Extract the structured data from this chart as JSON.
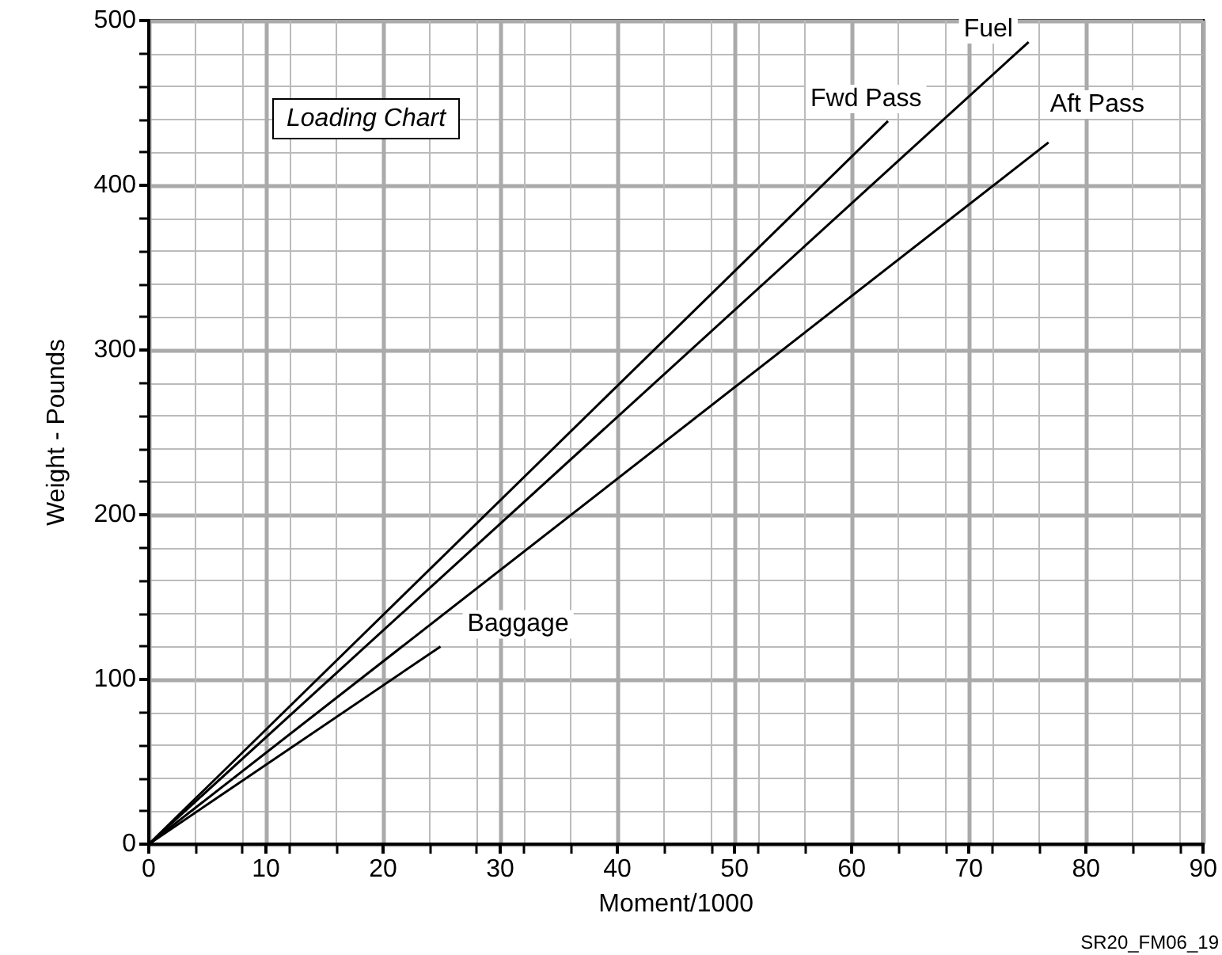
{
  "chart_data": {
    "type": "line",
    "xlabel": "Moment/1000",
    "ylabel": "Weight - Pounds",
    "xlim": [
      0,
      90
    ],
    "xticks": [
      0,
      10,
      20,
      30,
      40,
      50,
      60,
      70,
      80,
      90
    ],
    "ylim": [
      0,
      500
    ],
    "yticks": [
      0,
      100,
      200,
      300,
      400,
      500
    ],
    "grid": true,
    "legend": false,
    "marker": "none",
    "line_style": "solid",
    "series": [
      {
        "name": "Fwd Pass",
        "color": "#000000",
        "x": [
          0,
          63.1
        ],
        "values": [
          0,
          439
        ]
      },
      {
        "name": "Fuel",
        "color": "#000000",
        "x": [
          0,
          75.1
        ],
        "values": [
          0,
          487
        ]
      },
      {
        "name": "Aft Pass",
        "color": "#000000",
        "x": [
          0,
          76.8
        ],
        "values": [
          0,
          426
        ]
      },
      {
        "name": "Baggage",
        "color": "#000000",
        "x": [
          0,
          24.9
        ],
        "values": [
          0,
          120
        ]
      }
    ],
    "annotations": [
      "Loading Chart",
      "SR20_FM06_19"
    ]
  }
}
